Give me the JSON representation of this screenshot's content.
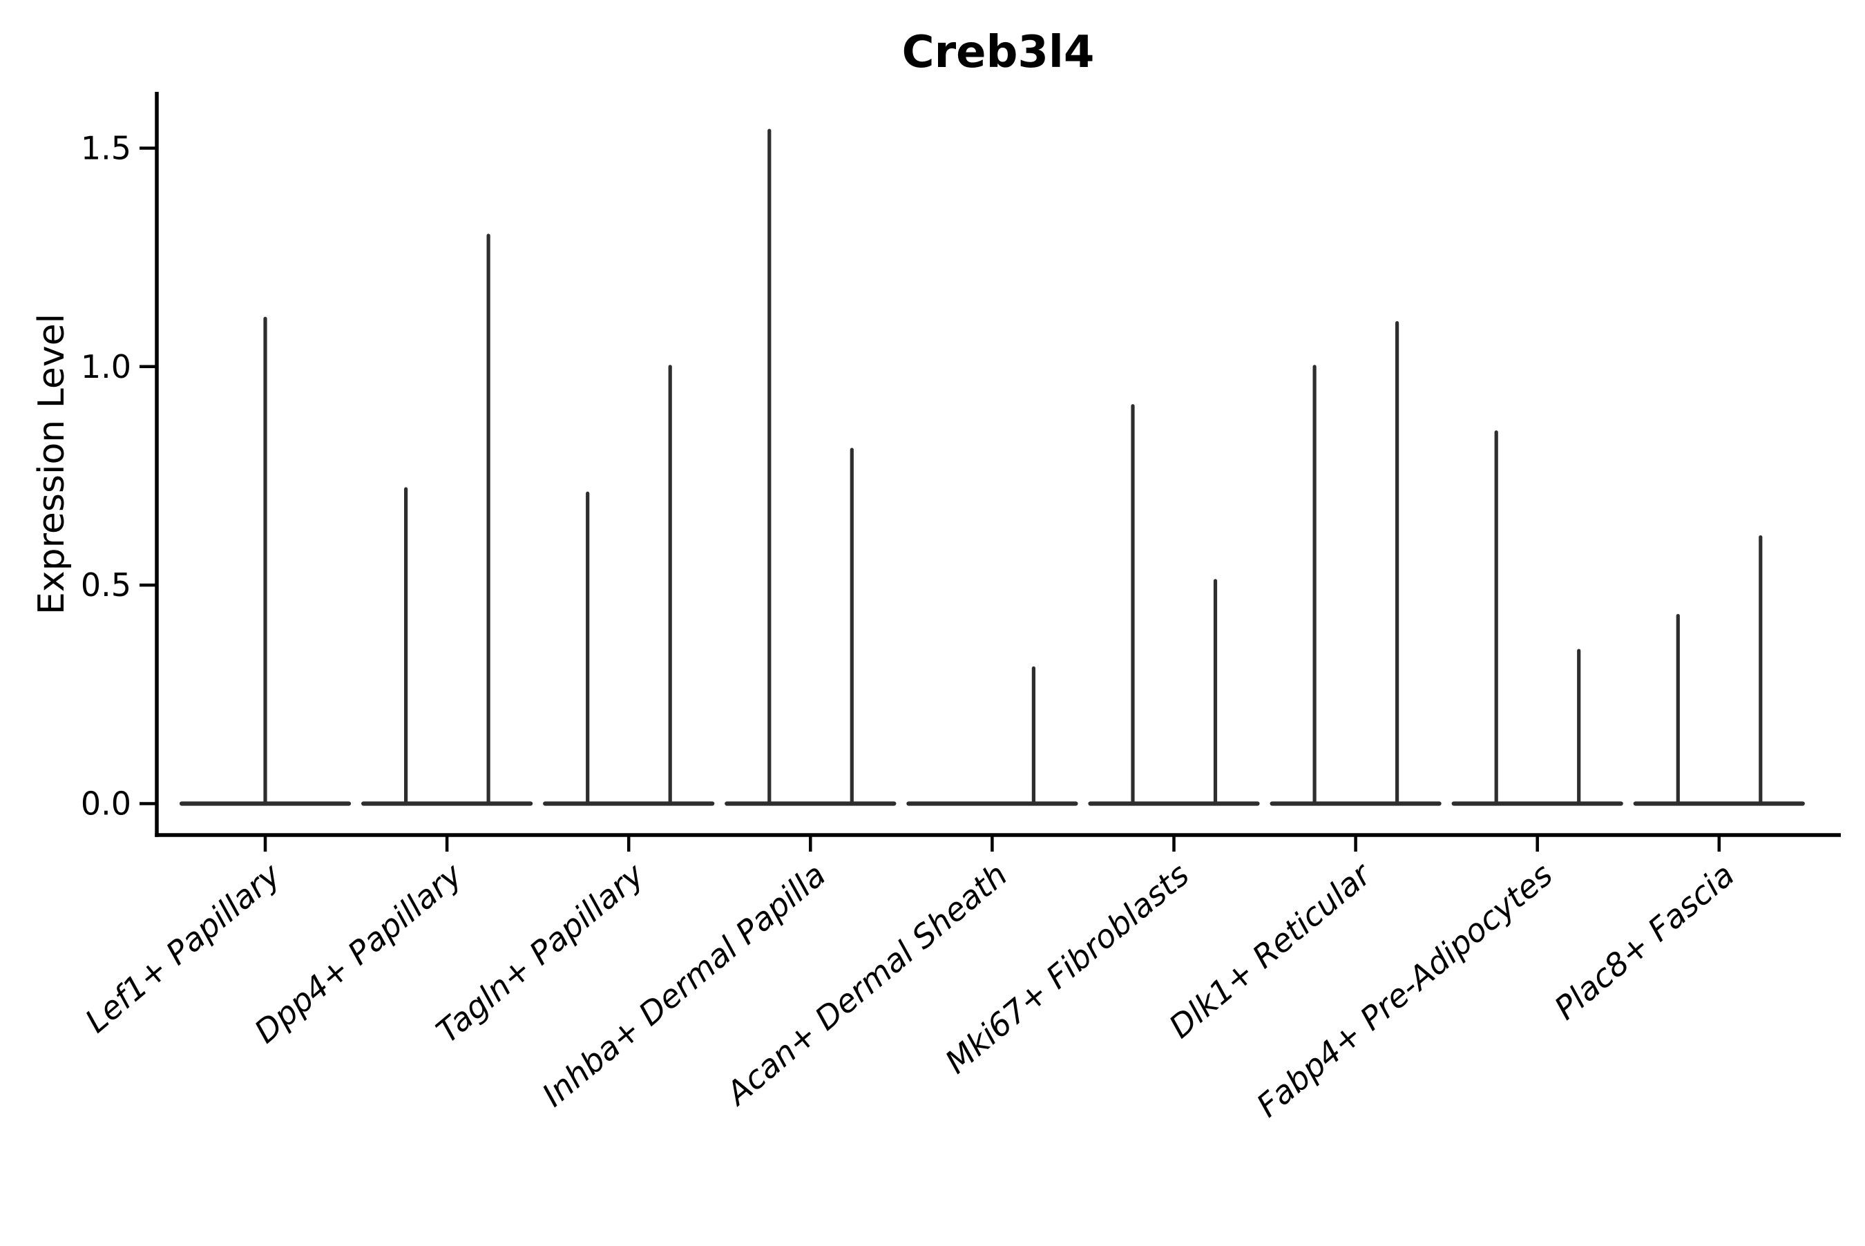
{
  "chart_data": {
    "type": "violin",
    "title": "Creb3l4",
    "ylabel": "Expression Level",
    "xlabel": "",
    "ylim": [
      -0.07,
      1.62
    ],
    "yticks": [
      0.0,
      0.5,
      1.0,
      1.5
    ],
    "ytick_labels": [
      "0.0",
      "0.5",
      "1.0",
      "1.5"
    ],
    "grid": false,
    "legend": false,
    "baseline_value": 0.0,
    "line_color": "#2e2e2e",
    "axis_color": "#000000",
    "categories": [
      "Lef1+ Papillary",
      "Dpp4+ Papillary",
      "Tagln+ Papillary",
      "Inhba+ Dermal Papilla",
      "Acan+ Dermal Sheath",
      "Mki67+ Fibroblasts",
      "Dlk1+ Reticular",
      "Fabp4+ Pre-Adipocytes",
      "Plac8+ Fascia"
    ],
    "violins": [
      {
        "category": "Lef1+ Papillary",
        "spikes": [
          {
            "slot": "center",
            "peak": 1.11
          }
        ]
      },
      {
        "category": "Dpp4+ Papillary",
        "spikes": [
          {
            "slot": "left",
            "peak": 0.72
          },
          {
            "slot": "right",
            "peak": 1.3
          }
        ]
      },
      {
        "category": "Tagln+ Papillary",
        "spikes": [
          {
            "slot": "left",
            "peak": 0.71
          },
          {
            "slot": "right",
            "peak": 1.0
          }
        ]
      },
      {
        "category": "Inhba+ Dermal Papilla",
        "spikes": [
          {
            "slot": "left",
            "peak": 1.54
          },
          {
            "slot": "right",
            "peak": 0.81
          }
        ]
      },
      {
        "category": "Acan+ Dermal Sheath",
        "spikes": [
          {
            "slot": "right",
            "peak": 0.31
          }
        ]
      },
      {
        "category": "Mki67+ Fibroblasts",
        "spikes": [
          {
            "slot": "left",
            "peak": 0.91
          },
          {
            "slot": "right",
            "peak": 0.51
          }
        ]
      },
      {
        "category": "Dlk1+ Reticular",
        "spikes": [
          {
            "slot": "left",
            "peak": 1.0
          },
          {
            "slot": "right",
            "peak": 1.1
          }
        ]
      },
      {
        "category": "Fabp4+ Pre-Adipocytes",
        "spikes": [
          {
            "slot": "left",
            "peak": 0.85
          },
          {
            "slot": "right",
            "peak": 0.35
          }
        ]
      },
      {
        "category": "Plac8+ Fascia",
        "spikes": [
          {
            "slot": "left",
            "peak": 0.43
          },
          {
            "slot": "right",
            "peak": 0.61
          }
        ]
      }
    ]
  }
}
